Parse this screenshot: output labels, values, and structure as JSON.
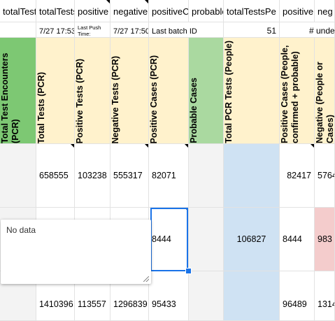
{
  "colors": {
    "green_header": "#7dc873",
    "light_green": "#aad9a0",
    "yellow": "#fff2cc",
    "gray": "#f3f3f3",
    "blue": "#cfe2f3",
    "pink": "#f4cccc",
    "selection": "#1a73e8"
  },
  "header_row": {
    "c0": "totalTest",
    "c1": "totalTests",
    "c2": "positive",
    "c3": "negative",
    "c4": "positiveC",
    "c5": "probable",
    "c6": "totalTestsPe",
    "c7": "positive",
    "c8": "neg"
  },
  "meta_row": {
    "c1": "7/27 17:53",
    "c2": "Last Push Time:",
    "c3": "7/27 17:50",
    "c4": "Last batch ID",
    "c6": "51",
    "c8": "# unde"
  },
  "column_titles": {
    "c0": "Total Test Encounters (PCR)",
    "c1": "Total Tests (PCR)",
    "c2": "Positive Tests (PCR)",
    "c3": "Negative Tests (PCR)",
    "c4": "Positive Cases (PCR)",
    "c5": "Probable Cases",
    "c6": "Total PCR Tests (People)",
    "c7": "Positive Cases (People, confirmed + probable)",
    "c8": "Negative (People or Cases)"
  },
  "rows": [
    {
      "c1": "658555",
      "c2": "103238",
      "c3": "555317",
      "c4": "82071",
      "c7": "82417",
      "c8": "5764"
    },
    {
      "c4": "8444",
      "c6": "106827",
      "c7": "8444",
      "c8": "983"
    },
    {
      "c1": "1410396",
      "c2": "113557",
      "c3": "1296839",
      "c4": "95433",
      "c7": "96489",
      "c8": "1314"
    }
  ],
  "note": {
    "text": "No data"
  }
}
